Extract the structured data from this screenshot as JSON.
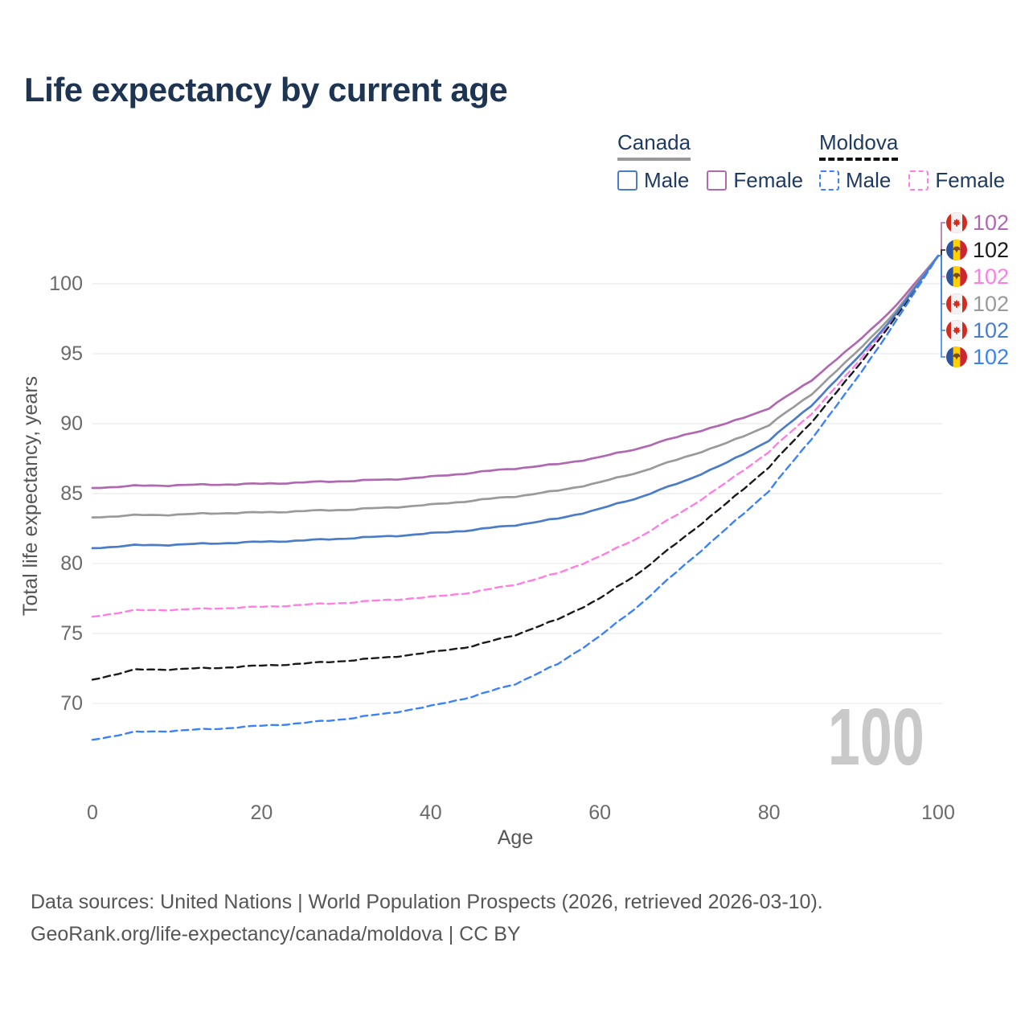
{
  "title": "Life expectancy by current age",
  "legend": {
    "groups": [
      {
        "country": "Canada",
        "underline_color": "#999999",
        "underline_style": "solid",
        "items": [
          {
            "label": "Male",
            "box_color": "#4a7cc7",
            "box_style": "solid"
          },
          {
            "label": "Female",
            "box_color": "#b069b0",
            "box_style": "solid"
          }
        ]
      },
      {
        "country": "Moldova",
        "underline_color": "#111111",
        "underline_style": "dashed",
        "items": [
          {
            "label": "Male",
            "box_color": "#3b82f6",
            "box_style": "dashed"
          },
          {
            "label": "Female",
            "box_color": "#ff7ee3",
            "box_style": "dashed"
          }
        ]
      }
    ]
  },
  "chart_data": {
    "type": "line",
    "title": "Life expectancy by current age",
    "xlabel": "Age",
    "ylabel": "Total life expectancy, years",
    "x_ticks": [
      0,
      20,
      40,
      60,
      80,
      100
    ],
    "y_ticks": [
      70,
      75,
      80,
      85,
      90,
      95,
      100
    ],
    "xlim": [
      0,
      100
    ],
    "grid": true,
    "legend_position": "top-right",
    "watermark": "100",
    "ages": [
      0,
      5,
      10,
      15,
      20,
      25,
      30,
      35,
      40,
      45,
      50,
      55,
      60,
      65,
      70,
      75,
      80,
      85,
      90,
      95,
      100
    ],
    "series": [
      {
        "name": "Canada Female",
        "country": "Canada",
        "sex": "Female",
        "flag": "canada",
        "style": "solid",
        "color": "#b069b0",
        "end_label": "102",
        "end_row": 0,
        "values": [
          85.4,
          85.55,
          85.6,
          85.65,
          85.7,
          85.8,
          85.9,
          86.0,
          86.2,
          86.5,
          86.8,
          87.1,
          87.6,
          88.3,
          89.2,
          90.0,
          91.1,
          93.1,
          95.6,
          98.4,
          102
        ]
      },
      {
        "name": "Moldova",
        "country": "Moldova",
        "sex": "Both",
        "flag": "moldova",
        "style": "dashed",
        "color": "#1a1a1a",
        "end_label": "102",
        "end_row": 1,
        "values": [
          71.7,
          72.4,
          72.45,
          72.55,
          72.7,
          72.85,
          73.05,
          73.3,
          73.65,
          74.1,
          74.9,
          76.0,
          77.5,
          79.5,
          81.9,
          84.3,
          86.9,
          90.1,
          93.7,
          97.6,
          102
        ]
      },
      {
        "name": "Moldova Female",
        "country": "Moldova",
        "sex": "Female",
        "flag": "moldova",
        "style": "dashed",
        "color": "#ff7ee3",
        "end_label": "102",
        "end_row": 2,
        "values": [
          76.2,
          76.65,
          76.7,
          76.8,
          76.9,
          77.05,
          77.2,
          77.4,
          77.6,
          77.95,
          78.5,
          79.3,
          80.5,
          82.0,
          83.8,
          85.8,
          88.0,
          90.7,
          94.0,
          97.8,
          102
        ]
      },
      {
        "name": "Canada",
        "country": "Canada",
        "sex": "Both",
        "flag": "canada",
        "style": "solid",
        "color": "#9a9a9a",
        "end_label": "102",
        "end_row": 3,
        "values": [
          83.3,
          83.45,
          83.5,
          83.6,
          83.65,
          83.75,
          83.85,
          84.0,
          84.2,
          84.5,
          84.8,
          85.2,
          85.8,
          86.6,
          87.6,
          88.6,
          89.9,
          92.1,
          94.9,
          98.0,
          102
        ]
      },
      {
        "name": "Canada Male",
        "country": "Canada",
        "sex": "Male",
        "flag": "canada",
        "style": "solid",
        "color": "#4a7cc7",
        "end_label": "102",
        "end_row": 4,
        "values": [
          81.1,
          81.3,
          81.35,
          81.45,
          81.55,
          81.65,
          81.8,
          81.95,
          82.15,
          82.4,
          82.75,
          83.2,
          83.9,
          84.8,
          85.9,
          87.2,
          88.8,
          91.3,
          94.4,
          97.8,
          102
        ]
      },
      {
        "name": "Moldova Male",
        "country": "Moldova",
        "sex": "Male",
        "flag": "moldova",
        "style": "dashed",
        "color": "#3b82f6",
        "end_label": "102",
        "end_row": 5,
        "values": [
          67.4,
          67.95,
          68.05,
          68.2,
          68.4,
          68.6,
          68.9,
          69.3,
          69.8,
          70.5,
          71.4,
          72.8,
          74.8,
          77.2,
          79.9,
          82.5,
          85.2,
          88.9,
          92.9,
          97.3,
          102
        ]
      }
    ],
    "flag_colors": {
      "canada_red": "#d52b1e",
      "canada_white": "#f2f2f2",
      "moldova_blue": "#2e54a1",
      "moldova_yellow": "#ffd200",
      "moldova_red": "#cc2631",
      "moldova_emblem": "#7a4a21"
    },
    "axis_color": "#6b6b6b",
    "gridline_color": "#e9e9e9"
  },
  "footer": {
    "line1": "Data sources: United Nations | World Population Prospects (2026, retrieved 2026-03-10).",
    "line2": "GeoRank.org/life-expectancy/canada/moldova | CC BY"
  }
}
